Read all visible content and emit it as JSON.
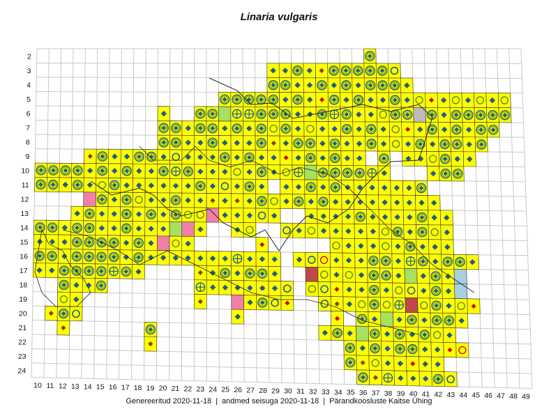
{
  "title": "Linaria vulgaris",
  "footer": {
    "generated": "Genereeritud 2020-11-18",
    "data_state": "andmed seisuga 2020-11-18",
    "society": "Pärandkoosluste Kaitse Ühing",
    "separator": "|"
  },
  "axes": {
    "columns": [
      "10",
      "11",
      "12",
      "13",
      "14",
      "15",
      "16",
      "17",
      "18",
      "19",
      "20",
      "21",
      "22",
      "23",
      "24",
      "25",
      "26",
      "27",
      "28",
      "29",
      "30",
      "31",
      "32",
      "33",
      "34",
      "35",
      "36",
      "37",
      "38",
      "39",
      "40",
      "41",
      "42",
      "43",
      "44",
      "45",
      "46",
      "47",
      "48",
      "49"
    ],
    "rows": [
      "2",
      "3",
      "4",
      "5",
      "6",
      "7",
      "8",
      "9",
      "10",
      "11",
      "12",
      "13",
      "14",
      "15",
      "16",
      "17",
      "18",
      "19",
      "20",
      "21",
      "22",
      "23",
      "24"
    ]
  },
  "colors": {
    "grid_line": "#c8c8c8",
    "occupied_cell": "#ffff00",
    "cell_border": "#333333",
    "outline": "#222222",
    "marker_blue": "#1f5f82",
    "marker_green": "#6b9a1a",
    "marker_red": "#cc1111",
    "marker_brown": "#7a4a1a",
    "pink": "#f080a8",
    "dark_red": "#c04848",
    "light_green": "#a8e060",
    "light_blue": "#a8d0e0",
    "grey": "#bbbbbb"
  },
  "legend_codes": {
    "D": "blue-diamond",
    "R": "green-ring",
    "C": "combined-ring-diamond",
    "X": "cross-ring",
    "B": "blue-ring",
    "r": "red-diamond",
    "b": "brown-diamond",
    "o": "red-ring",
    "P": "pink-cell",
    "K": "dark-red-cell",
    "G": "light-green-cell",
    "L": "light-blue-cell",
    "Y": "grey-cell"
  },
  "grid": {
    "2": {
      "37": "C"
    },
    "3": {
      "29": "D",
      "30": "D",
      "31": "C",
      "32": "D",
      "33": "b",
      "34": "C",
      "35": "C",
      "36": "C",
      "37": "C",
      "38": "C",
      "39": "B"
    },
    "4": {
      "29": "C",
      "30": "C",
      "31": "D",
      "32": "D",
      "33": "C",
      "34": "D",
      "35": "C",
      "36": "D",
      "37": "C",
      "38": "C",
      "39": "C",
      "40": "D"
    },
    "5": {
      "25": "C",
      "26": "C",
      "27": "C",
      "28": "C",
      "29": "C",
      "30": "D",
      "31": "C",
      "32": "D",
      "33": "r",
      "34": "C",
      "35": "D",
      "36": "C",
      "37": "D",
      "38": "D",
      "39": "C",
      "40": "D",
      "41": "R",
      "42": "r",
      "43": "D",
      "44": "R",
      "45": "D",
      "46": "R",
      "47": "D",
      "48": "R"
    },
    "6": {
      "20": "D",
      "23": "C",
      "24": "C",
      "25": "G",
      "26": "X",
      "27": "X",
      "28": "C",
      "29": "C",
      "30": "C",
      "31": "D",
      "32": "D",
      "33": "C",
      "34": "X",
      "35": "C",
      "36": "D",
      "37": "D",
      "38": "R",
      "39": "C",
      "40": "C",
      "41": "Y",
      "42": "C",
      "43": "D",
      "44": "C",
      "45": "C",
      "46": "C",
      "47": "C",
      "48": "C"
    },
    "7": {
      "20": "C",
      "21": "C",
      "22": "D",
      "23": "C",
      "24": "C",
      "25": "D",
      "26": "C",
      "27": "D",
      "28": "C",
      "29": "R",
      "30": "C",
      "31": "D",
      "32": "R",
      "33": "D",
      "34": "D",
      "35": "C",
      "36": "D",
      "37": "C",
      "38": "D",
      "39": "R",
      "40": "r",
      "41": "D",
      "42": "C",
      "43": "D",
      "44": "C",
      "45": "D",
      "46": "C",
      "47": "C"
    },
    "8": {
      "20": "C",
      "21": "C",
      "22": "D",
      "23": "D",
      "24": "C",
      "25": "D",
      "26": "D",
      "27": "D",
      "28": "C",
      "29": "b",
      "30": "D",
      "31": "C",
      "32": "C",
      "33": "D",
      "34": "C",
      "35": "D",
      "36": "D",
      "37": "C",
      "38": "D",
      "39": "R",
      "40": "D",
      "41": "C",
      "42": "D",
      "43": "C",
      "44": "C",
      "45": "D",
      "46": "C"
    },
    "9": {
      "14": "b",
      "15": "C",
      "16": "D",
      "17": "D",
      "18": "C",
      "19": "C",
      "20": "D",
      "21": "B",
      "22": "D",
      "23": "D",
      "24": "D",
      "25": "C",
      "26": "D",
      "27": "C",
      "28": "D",
      "29": "D",
      "30": "r",
      "31": "D",
      "32": "C",
      "33": "D",
      "34": "C",
      "35": "D",
      "36": "D",
      "38": "C",
      "40": "D",
      "41": "D",
      "42": "R",
      "43": "C",
      "44": "D",
      "45": "D"
    },
    "10": {
      "10": "C",
      "11": "C",
      "12": "C",
      "13": "C",
      "14": "D",
      "15": "C",
      "16": "D",
      "17": "C",
      "18": "D",
      "19": "D",
      "20": "C",
      "21": "X",
      "22": "C",
      "23": "D",
      "24": "D",
      "25": "D",
      "26": "R",
      "27": "D",
      "28": "C",
      "29": "D",
      "30": "R",
      "31": "X",
      "32": "G",
      "33": "C",
      "34": "C",
      "35": "C",
      "36": "C",
      "37": "X",
      "38": "D",
      "42": "D",
      "43": "C",
      "44": "C"
    },
    "11": {
      "10": "C",
      "11": "C",
      "12": "D",
      "13": "C",
      "14": "D",
      "15": "R",
      "16": "C",
      "17": "D",
      "18": "D",
      "19": "D",
      "20": "D",
      "21": "D",
      "22": "D",
      "23": "C",
      "24": "D",
      "25": "B",
      "26": "D",
      "27": "C",
      "28": "D",
      "30": "D",
      "31": "D",
      "32": "C",
      "33": "D",
      "34": "C",
      "35": "D",
      "36": "D",
      "37": "D",
      "38": "D",
      "39": "D",
      "40": "D",
      "41": "C"
    },
    "12": {
      "14": "P",
      "15": "C",
      "16": "D",
      "17": "C",
      "18": "R",
      "19": "D",
      "20": "D",
      "21": "C",
      "22": "D",
      "23": "D",
      "24": "b",
      "25": "D",
      "26": "b",
      "27": "D",
      "28": "C",
      "29": "R",
      "30": "D",
      "31": "C",
      "32": "D",
      "33": "C",
      "34": "D",
      "35": "D",
      "36": "D",
      "37": "D",
      "38": "D",
      "39": "D",
      "40": "D",
      "41": "D",
      "42": "D"
    },
    "13": {
      "13": "D",
      "14": "C",
      "15": "D",
      "16": "D",
      "17": "C",
      "18": "D",
      "19": "C",
      "20": "D",
      "21": "C",
      "22": "R",
      "23": "R",
      "24": "P",
      "25": "D",
      "26": "D",
      "27": "D",
      "28": "B",
      "29": "D",
      "32": "D",
      "33": "D",
      "34": "D",
      "35": "D",
      "36": "C",
      "37": "D",
      "38": "D",
      "39": "D",
      "40": "D",
      "41": "C",
      "42": "D",
      "43": "D"
    },
    "14": {
      "10": "C",
      "11": "C",
      "12": "D",
      "13": "C",
      "14": "C",
      "15": "D",
      "16": "D",
      "17": "C",
      "18": "D",
      "19": "D",
      "20": "D",
      "21": "G",
      "22": "P",
      "23": "D",
      "26": "D",
      "27": "R",
      "30": "B",
      "31": "D",
      "32": "R",
      "33": "D",
      "34": "D",
      "35": "D",
      "36": "D",
      "37": "D",
      "38": "R",
      "39": "C",
      "40": "D",
      "41": "C",
      "42": "R",
      "43": "D"
    },
    "15": {
      "10": "D",
      "11": "D",
      "12": "D",
      "13": "C",
      "14": "C",
      "15": "C",
      "16": "C",
      "17": "D",
      "18": "C",
      "19": "D",
      "20": "P",
      "21": "R",
      "22": "D",
      "28": "r",
      "34": "R",
      "35": "D",
      "36": "D",
      "37": "D",
      "38": "R",
      "39": "D",
      "40": "C",
      "41": "D",
      "42": "D",
      "43": "D"
    },
    "16": {
      "10": "C",
      "11": "C",
      "12": "D",
      "13": "C",
      "14": "C",
      "15": "C",
      "16": "C",
      "17": "D",
      "18": "C",
      "19": "D",
      "20": "D",
      "21": "D",
      "22": "D",
      "23": "D",
      "24": "D",
      "25": "D",
      "26": "X",
      "27": "D",
      "28": "D",
      "29": "D",
      "31": "D",
      "32": "B",
      "33": "o",
      "34": "D",
      "35": "D",
      "36": "D",
      "37": "C",
      "38": "C",
      "39": "D",
      "40": "X",
      "41": "C",
      "42": "D",
      "43": "C",
      "44": "C",
      "45": "D"
    },
    "17": {
      "10": "D",
      "11": "D",
      "12": "C",
      "13": "C",
      "14": "C",
      "15": "C",
      "16": "X",
      "17": "C",
      "18": "D",
      "23": "b",
      "24": "D",
      "25": "C",
      "26": "D",
      "27": "C",
      "28": "C",
      "29": "D",
      "32": "K",
      "33": "R",
      "34": "D",
      "35": "R",
      "36": "D",
      "37": "C",
      "38": "C",
      "39": "D",
      "40": "G",
      "41": "D",
      "42": "C",
      "43": "D",
      "44": "L"
    },
    "18": {
      "12": "C",
      "13": "D",
      "14": "D",
      "15": "C",
      "23": "X",
      "24": "D",
      "25": "D",
      "26": "D",
      "27": "D",
      "28": "D",
      "29": "D",
      "30": "B",
      "32": "R",
      "33": "B",
      "34": "r",
      "35": "D",
      "36": "D",
      "37": "C",
      "38": "D",
      "39": "R",
      "40": "B",
      "41": "D",
      "42": "C",
      "43": "D",
      "44": "L"
    },
    "19": {
      "12": "R",
      "13": "D",
      "23": "b",
      "26": "P",
      "27": "D",
      "28": "C",
      "29": "B",
      "30": "r",
      "33": "B",
      "34": "b",
      "35": "D",
      "36": "R",
      "37": "C",
      "38": "R",
      "39": "X",
      "40": "K",
      "41": "R",
      "42": "C",
      "43": "D",
      "44": "R",
      "45": "r"
    },
    "20": {
      "11": "b",
      "12": "C",
      "13": "B",
      "26": "D",
      "34": "r",
      "36": "C",
      "37": "D",
      "38": "G",
      "39": "D",
      "40": "C",
      "41": "D",
      "42": "C",
      "43": "C",
      "44": "D"
    },
    "21": {
      "12": "b",
      "19": "C",
      "33": "D",
      "34": "C",
      "35": "D",
      "36": "G",
      "37": "C",
      "38": "D",
      "39": "C",
      "40": "D",
      "41": "C",
      "42": "R",
      "43": "D"
    },
    "22": {
      "19": "b",
      "35": "C",
      "36": "D",
      "37": "C",
      "38": "D",
      "39": "C",
      "40": "C",
      "41": "D",
      "42": "D",
      "43": "r",
      "44": "o"
    },
    "23": {
      "35": "C",
      "36": "b",
      "37": "R",
      "38": "D",
      "39": "D",
      "40": "r",
      "41": "D",
      "42": "D"
    },
    "24": {
      "36": "C",
      "37": "b",
      "38": "X",
      "39": "D",
      "40": "D",
      "41": "D",
      "42": "C",
      "43": "B"
    }
  }
}
